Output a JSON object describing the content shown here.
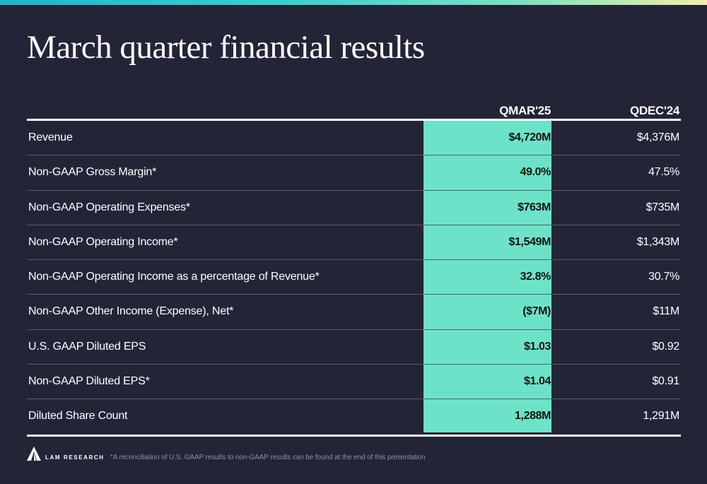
{
  "title": "March quarter financial results",
  "columns": {
    "current": "QMAR'25",
    "prior": "QDEC'24"
  },
  "rows": [
    {
      "label": "Revenue",
      "current": "$4,720M",
      "prior": "$4,376M"
    },
    {
      "label": "Non-GAAP Gross Margin*",
      "current": "49.0%",
      "prior": "47.5%"
    },
    {
      "label": "Non-GAAP Operating Expenses*",
      "current": "$763M",
      "prior": "$735M"
    },
    {
      "label": "Non-GAAP Operating Income*",
      "current": "$1,549M",
      "prior": "$1,343M"
    },
    {
      "label": "Non-GAAP Operating Income as a percentage of Revenue*",
      "current": "32.8%",
      "prior": "30.7%"
    },
    {
      "label": "Non-GAAP Other Income (Expense), Net*",
      "current": "($7M)",
      "prior": "$11M"
    },
    {
      "label": "U.S. GAAP Diluted EPS",
      "current": "$1.03",
      "prior": "$0.92"
    },
    {
      "label": "Non-GAAP Diluted EPS*",
      "current": "$1.04",
      "prior": "$0.91"
    },
    {
      "label": "Diluted Share Count",
      "current": "1,288M",
      "prior": "1,291M"
    }
  ],
  "footer": {
    "logo_text": "LAM RESEARCH",
    "footnote": "*A reconciliation of U.S. GAAP results to non-GAAP results can be found at the end of this presentation"
  },
  "colors": {
    "background": "#232537",
    "highlight": "#6ce3c8"
  },
  "icons": {
    "logo": "lam-research-logo-icon"
  }
}
